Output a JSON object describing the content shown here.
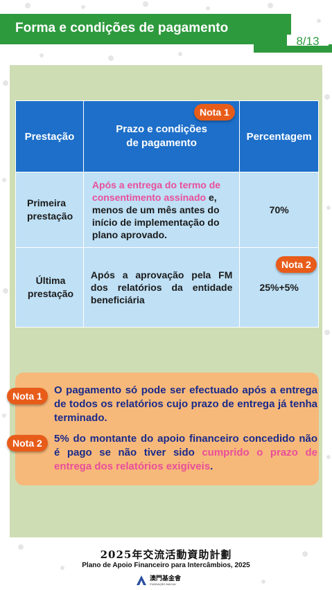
{
  "header": {
    "title": "Forma e condições de pagamento",
    "page": "8/13"
  },
  "table": {
    "headers": [
      "Prestação",
      "Prazo e condições de pagamento",
      "Percentagem"
    ],
    "rows": [
      {
        "name": "Primeira prestação",
        "cond_pink": "Após a entrega do termo de consentimento assinado",
        "cond_rest": " e, menos de um mês antes do início de implementação do plano aprovado.",
        "pct": "70%"
      },
      {
        "name": "Última prestação",
        "cond": "Após a aprovação pela FM dos relatórios da entidade beneficiária",
        "pct": "25%+5%"
      }
    ]
  },
  "badges": {
    "nota1": "Nota 1",
    "nota2": "Nota 2"
  },
  "notes": [
    {
      "label": "Nota 1",
      "text": "O pagamento só pode ser efectuado após a entrega de todos os relatórios cujo prazo de entrega já tenha terminado."
    },
    {
      "label": "Nota 2",
      "text_a": "5% do montante do apoio financeiro concedido não é pago se não tiver sido ",
      "text_pink": "cumprido o prazo de entrega dos relatórios exigíveis",
      "text_b": "."
    }
  ],
  "footer": {
    "cn": "2025年交流活動資助計劃",
    "pt": "Plano de Apoio Financeiro para Intercâmbios, 2025",
    "logo_cn": "澳門基金會",
    "logo_en": "FUNDAÇÃO MACAU"
  }
}
